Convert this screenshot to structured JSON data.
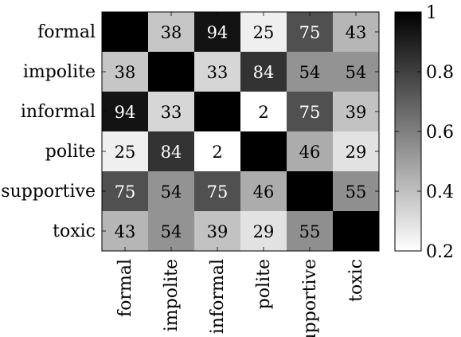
{
  "chart_data": {
    "type": "heatmap",
    "title": "",
    "xlabel": "",
    "ylabel": "",
    "row_labels": [
      "formal",
      "impolite",
      "informal",
      "polite",
      "supportive",
      "toxic"
    ],
    "col_labels": [
      "formal",
      "impolite",
      "informal",
      "polite",
      "supportive",
      "toxic"
    ],
    "values": [
      [
        null,
        38,
        94,
        25,
        75,
        43
      ],
      [
        38,
        null,
        33,
        84,
        54,
        54
      ],
      [
        94,
        33,
        null,
        2,
        75,
        39
      ],
      [
        25,
        84,
        2,
        null,
        46,
        29
      ],
      [
        75,
        54,
        75,
        46,
        null,
        55
      ],
      [
        43,
        54,
        39,
        29,
        55,
        null
      ]
    ],
    "diagonal_value": 1,
    "colorscale": {
      "low_color": "#ffffff",
      "high_color": "#000000",
      "min": 0.2,
      "max": 1,
      "ticks": [
        "0.2",
        "0.4",
        "0.6",
        "0.8",
        "1"
      ]
    },
    "colorbar_position": "right",
    "grid": false
  }
}
